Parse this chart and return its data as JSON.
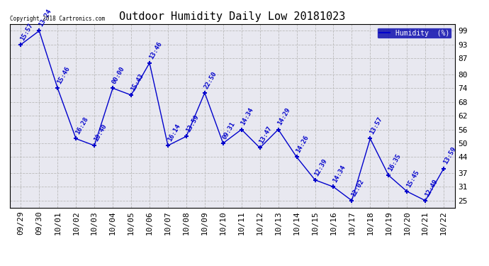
{
  "title": "Outdoor Humidity Daily Low 20181023",
  "x_labels": [
    "09/29",
    "09/30",
    "10/01",
    "10/02",
    "10/03",
    "10/04",
    "10/05",
    "10/06",
    "10/07",
    "10/08",
    "10/09",
    "10/10",
    "10/11",
    "10/12",
    "10/13",
    "10/14",
    "10/15",
    "10/16",
    "10/17",
    "10/18",
    "10/19",
    "10/20",
    "10/21",
    "10/22"
  ],
  "y_values": [
    93,
    99,
    74,
    52,
    49,
    74,
    71,
    85,
    49,
    53,
    72,
    50,
    56,
    48,
    56,
    44,
    34,
    31,
    25,
    52,
    36,
    29,
    25,
    39
  ],
  "time_labels": [
    "15:57",
    "13:24",
    "15:46",
    "16:28",
    "10:40",
    "00:00",
    "15:43",
    "13:46",
    "16:14",
    "13:59",
    "22:50",
    "09:31",
    "14:34",
    "13:47",
    "14:29",
    "14:26",
    "12:39",
    "14:34",
    "12:02",
    "13:57",
    "16:35",
    "15:45",
    "12:49",
    "13:59"
  ],
  "y_ticks": [
    25,
    31,
    37,
    44,
    50,
    56,
    62,
    68,
    74,
    80,
    87,
    93,
    99
  ],
  "ylim": [
    22,
    102
  ],
  "xlim": [
    -0.6,
    23.6
  ],
  "line_color": "#0000cc",
  "marker_color": "#0000cc",
  "grid_color": "#bbbbbb",
  "plot_bg_color": "#e8e8f0",
  "outer_bg_color": "#ffffff",
  "legend_bg": "#0000aa",
  "legend_text": "Humidity  (%)",
  "copyright_text": "Copyright 2018 Cartronics.com",
  "title_fontsize": 11,
  "tick_fontsize": 8,
  "annotation_fontsize": 6.5
}
